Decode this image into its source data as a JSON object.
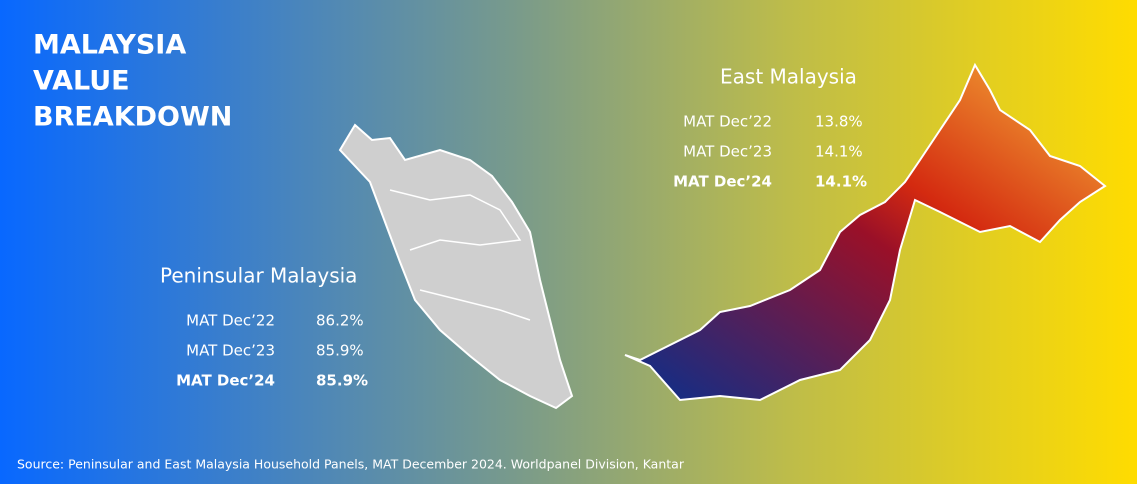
{
  "title_lines": [
    "MALAYSIA",
    "VALUE",
    "BREAKDOWN"
  ],
  "regions": [
    {
      "name": "Peninsular Malaysia",
      "rows": [
        {
          "period": "MAT Dec’22",
          "share": "86.2%"
        },
        {
          "period": "MAT Dec’23",
          "share": "85.9%"
        },
        {
          "period": "MAT Dec’24",
          "share": "85.9%"
        }
      ]
    },
    {
      "name": "East Malaysia",
      "rows": [
        {
          "period": "MAT Dec’22",
          "share": "13.8%"
        },
        {
          "period": "MAT Dec’23",
          "share": "14.1%"
        },
        {
          "period": "MAT Dec’24",
          "share": "14.1%"
        }
      ]
    }
  ],
  "source": "Source: Peninsular and East Malaysia Household Panels, MAT December 2024. Worldpanel Division, Kantar"
}
